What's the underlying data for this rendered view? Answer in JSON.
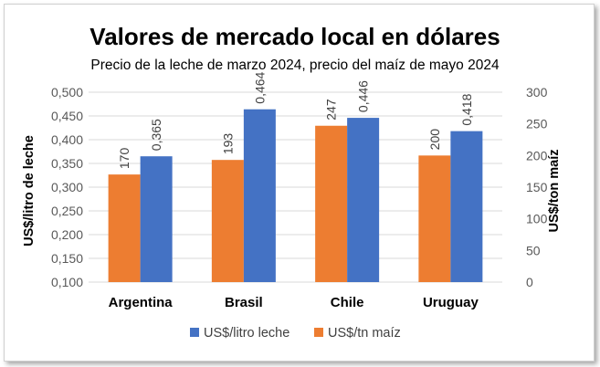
{
  "chart_data": {
    "type": "bar",
    "title": "Valores de mercado local en dólares",
    "subtitle": "Precio de la leche de marzo 2024, precio del maíz de mayo 2024",
    "categories": [
      "Argentina",
      "Brasil",
      "Chile",
      "Uruguay"
    ],
    "series": [
      {
        "name": "US$/litro leche",
        "axis": "left",
        "color": "#4472C4",
        "values": [
          0.365,
          0.464,
          0.446,
          0.418
        ],
        "labels": [
          "0,365",
          "0,464",
          "0,446",
          "0,418"
        ]
      },
      {
        "name": "US$/tn maíz",
        "axis": "right",
        "color": "#ED7D31",
        "values": [
          170,
          193,
          247,
          200
        ],
        "labels": [
          "170",
          "193",
          "247",
          "200"
        ]
      }
    ],
    "y_left": {
      "label": "US$/litro de leche",
      "min": 0.1,
      "max": 0.5,
      "ticks": [
        "0,100",
        "0,150",
        "0,200",
        "0,250",
        "0,300",
        "0,350",
        "0,400",
        "0,450",
        "0,500"
      ]
    },
    "y_right": {
      "label": "US$/ton maíz",
      "min": 0,
      "max": 300,
      "ticks": [
        "0",
        "50",
        "100",
        "150",
        "200",
        "250",
        "300"
      ]
    },
    "grid": true,
    "legend": "bottom"
  }
}
